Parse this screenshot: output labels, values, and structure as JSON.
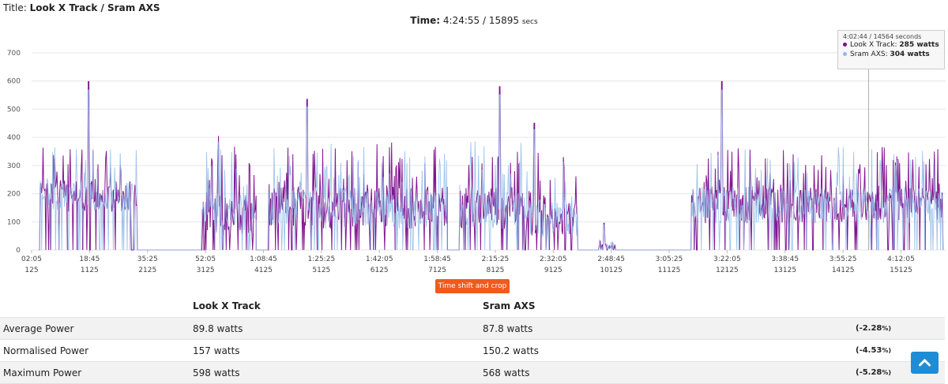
{
  "header": {
    "title_label": "Title:",
    "title": "Look X Track / Sram AXS",
    "time_label": "Time:",
    "time_value": "4:24:55",
    "time_separator": " / ",
    "time_secs": "15895",
    "time_unit": "secs"
  },
  "tooltip": {
    "time": "4:02:44 / 14564 seconds",
    "series1_label": "Look X Track: ",
    "series1_value": "285 watts",
    "series2_label": "Sram AXS: ",
    "series2_value": "304 watts"
  },
  "crop_button": "Time shift and crop",
  "colors": {
    "series1": "#7b0a8a",
    "series2": "#8fb8e6",
    "accent": "#f15a1d",
    "scroll_button": "#1f8dd6"
  },
  "table": {
    "headers": [
      "",
      "Look X Track",
      "Sram AXS",
      ""
    ],
    "rows": [
      {
        "label": "Average Power",
        "a": "89.8 watts",
        "b": "87.8 watts",
        "diff": "(-2.28",
        "pct": "%)"
      },
      {
        "label": "Normalised Power",
        "a": "157 watts",
        "b": "150.2 watts",
        "diff": "(-4.53",
        "pct": "%)"
      },
      {
        "label": "Maximum Power",
        "a": "598 watts",
        "b": "568 watts",
        "diff": "(-5.28",
        "pct": "%)"
      }
    ]
  },
  "icons": {
    "scroll_top": "chevron-up-icon"
  },
  "chart_data": {
    "type": "line",
    "title": "",
    "xlabel": "",
    "ylabel": "",
    "ylim": [
      0,
      700
    ],
    "yticks": [
      0,
      100,
      200,
      300,
      400,
      500,
      600,
      700
    ],
    "xlim": [
      125,
      15895
    ],
    "x_time_ticks": [
      "02:05",
      "18:45",
      "35:25",
      "52:05",
      "1:08:45",
      "1:25:25",
      "1:42:05",
      "1:58:45",
      "2:15:25",
      "2:32:05",
      "2:48:45",
      "3:05:25",
      "3:22:05",
      "3:38:45",
      "3:55:25",
      "4:12:05"
    ],
    "x_sec_ticks": [
      "125",
      "1125",
      "2125",
      "3125",
      "4125",
      "5125",
      "6125",
      "7125",
      "8125",
      "9125",
      "10125",
      "11125",
      "12125",
      "13125",
      "14125",
      "15125"
    ],
    "grid": true,
    "cursor_x": 14564,
    "series": [
      {
        "name": "Look X Track",
        "color": "#7b0a8a"
      },
      {
        "name": "Sram AXS",
        "color": "#8fb8e6"
      }
    ],
    "segments": [
      {
        "x_start": 250,
        "x_end": 1950,
        "base": 190,
        "spread": 110,
        "peak_x": 1110,
        "peak_y": 598
      },
      {
        "x_start": 3050,
        "x_end": 4000,
        "base": 130,
        "spread": 150,
        "peak_x": 3350,
        "peak_y": 405
      },
      {
        "x_start": 4200,
        "x_end": 7300,
        "base": 150,
        "spread": 150,
        "peak_x": 4880,
        "peak_y": 535
      },
      {
        "x_start": 7500,
        "x_end": 8600,
        "base": 150,
        "spread": 150,
        "peak_x": 8200,
        "peak_y": 580
      },
      {
        "x_start": 8600,
        "x_end": 9000,
        "base": 120,
        "spread": 150,
        "peak_x": 8800,
        "peak_y": 450
      },
      {
        "x_start": 9000,
        "x_end": 9550,
        "base": 110,
        "spread": 120,
        "peak_x": 9300,
        "peak_y": 330
      },
      {
        "x_start": 9900,
        "x_end": 10200,
        "base": 10,
        "spread": 20,
        "peak_x": 10000,
        "peak_y": 95
      },
      {
        "x_start": 11500,
        "x_end": 15850,
        "base": 160,
        "spread": 130,
        "peak_x": 12030,
        "peak_y": 598
      }
    ]
  }
}
